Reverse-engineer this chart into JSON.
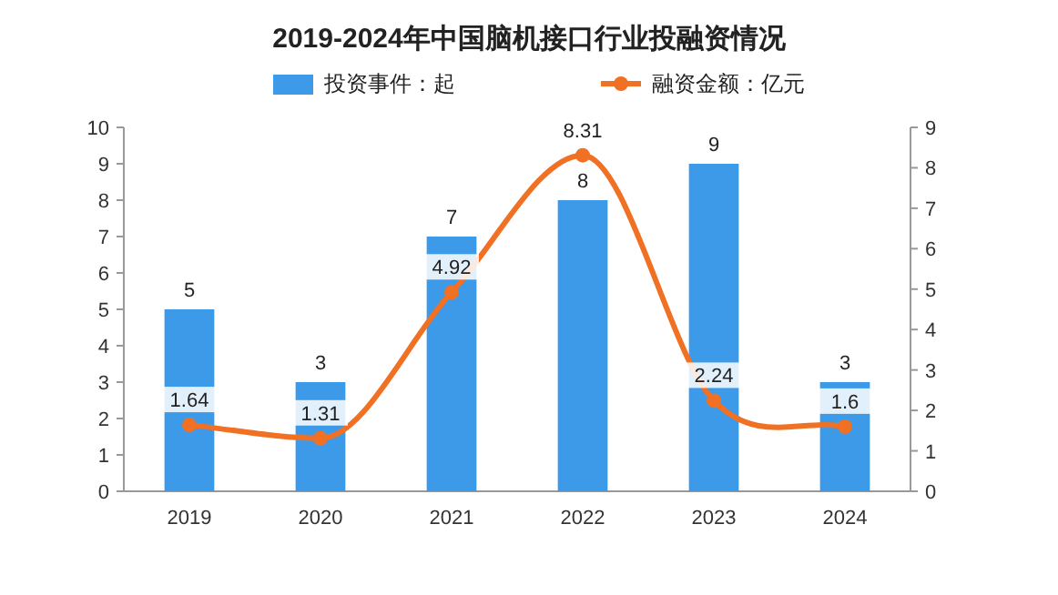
{
  "chart_data": {
    "type": "bar",
    "title": "2019-2024年中国脑机接口行业投融资情况",
    "categories": [
      "2019",
      "2020",
      "2021",
      "2022",
      "2023",
      "2024"
    ],
    "series": [
      {
        "name": "投资事件：起",
        "color": "#3d9ae8",
        "values": [
          5,
          3,
          7,
          8,
          9,
          3
        ]
      },
      {
        "name": "融资金额：亿元",
        "type": "line",
        "axis": "y2",
        "color": "#f07024",
        "marker": "circle",
        "values": [
          1.64,
          1.31,
          4.92,
          8.31,
          2.24,
          1.6
        ]
      }
    ],
    "ylim": [
      0,
      10
    ],
    "yticks": [
      0,
      1,
      2,
      3,
      4,
      5,
      6,
      7,
      8,
      9,
      10
    ],
    "y2lim": [
      0,
      9
    ],
    "y2ticks": [
      0,
      1,
      2,
      3,
      4,
      5,
      6,
      7,
      8,
      9
    ],
    "data_labels": true,
    "legend": "top",
    "grid": false
  }
}
